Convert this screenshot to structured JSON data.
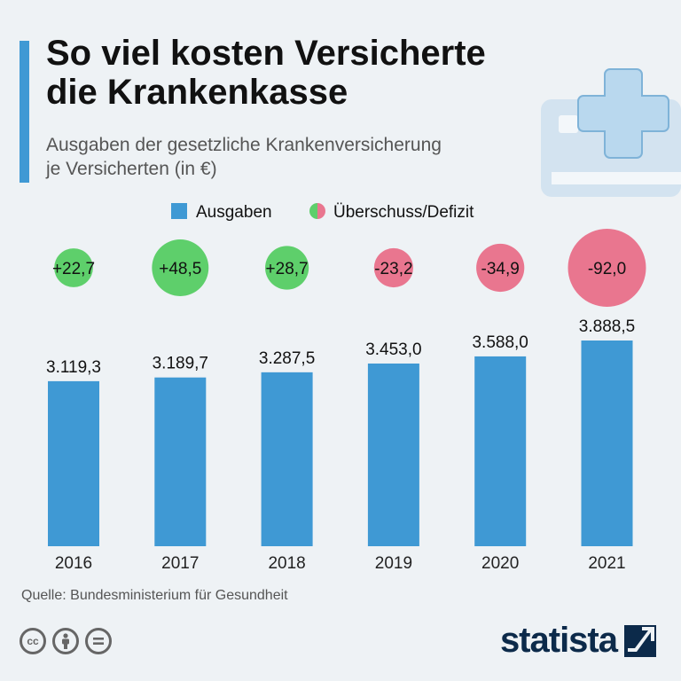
{
  "title": "So viel kosten Versicherte die Krankenkasse",
  "title_line1": "So viel kosten Versicherte",
  "title_line2": "die Krankenkasse",
  "subtitle_line1": "Ausgaben der gesetzliche Krankenversicherung",
  "subtitle_line2": "je Versicherten (in €)",
  "source": "Quelle: Bundesministerium für Gesundheit",
  "brand": "statista",
  "license_icons": [
    "cc-icon",
    "by-attribution-icon",
    "nd-no-derivatives-icon"
  ],
  "colors": {
    "bar": "#3f99d4",
    "surplus": "#5ecf6b",
    "deficit": "#e9768f",
    "accent": "#3f99d4",
    "brand": "#0c2a4a"
  },
  "chart_data": {
    "type": "bar",
    "title": "So viel kosten Versicherte die Krankenkasse",
    "categories": [
      "2016",
      "2017",
      "2018",
      "2019",
      "2020",
      "2021"
    ],
    "series": [
      {
        "name": "Ausgaben",
        "values": [
          3119.3,
          3189.7,
          3287.5,
          3453.0,
          3588.0,
          3888.5
        ],
        "labels": [
          "3.119,3",
          "3.189,7",
          "3.287,5",
          "3.453,0",
          "3.588,0",
          "3.888,5"
        ]
      },
      {
        "name": "Überschuss/Defizit",
        "values": [
          22.7,
          48.5,
          28.7,
          -23.2,
          -34.9,
          -92.0
        ],
        "labels": [
          "+22,7",
          "+48,5",
          "+28,7",
          "-23,2",
          "-34,9",
          "-92,0"
        ]
      }
    ],
    "legend": [
      "Ausgaben",
      "Überschuss/Defizit"
    ],
    "legend_position": "top",
    "ylim": [
      0,
      3888.5
    ],
    "grid": false,
    "xlabel": "",
    "ylabel": ""
  }
}
